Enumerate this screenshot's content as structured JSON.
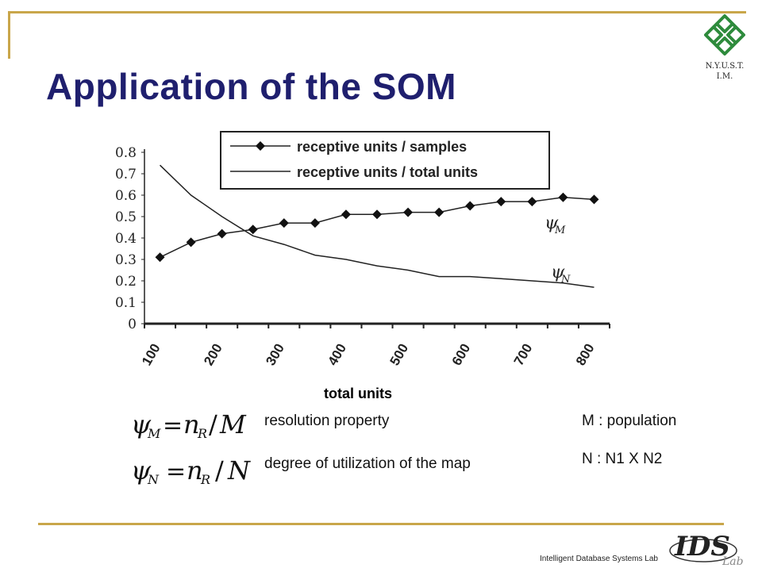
{
  "slide": {
    "title": "Application of the SOM",
    "logo_line1": "N.Y.U.S.T.",
    "logo_line2": "I.M.",
    "footer": "Intelligent Database Systems Lab",
    "footer_logo_text": "IDS",
    "footer_logo_sub": "Lab",
    "accent_color": "#1f1f6e",
    "frame_color": "#c9a64a",
    "logo_color": "#2e8b3c"
  },
  "definitions": [
    {
      "lhs": "ψ",
      "lhs_sub": "M",
      "rhs_var": "n",
      "rhs_sub": "R",
      "divisor": "M",
      "label": "resolution property"
    },
    {
      "lhs": "ψ",
      "lhs_sub": "N",
      "rhs_var": "n",
      "rhs_sub": "R",
      "divisor": "N",
      "label": "degree of utilization of the map"
    }
  ],
  "notes": [
    "M : population",
    "N : N1 X N2"
  ],
  "chart_data": {
    "type": "line",
    "xlabel": "total units",
    "ylabel": "",
    "xlim": [
      100,
      850
    ],
    "ylim": [
      0,
      0.8
    ],
    "x_ticks": [
      100,
      200,
      300,
      400,
      500,
      600,
      700,
      800
    ],
    "y_ticks": [
      0,
      0.1,
      0.2,
      0.3,
      0.4,
      0.5,
      0.6,
      0.7,
      0.8
    ],
    "y_tick_labels": [
      "0",
      "0.1",
      "0.2",
      "0.3",
      "0.4",
      "0.5",
      "0.6",
      "0.7",
      "0.8"
    ],
    "grid": false,
    "legend_position": "top-right",
    "series": [
      {
        "name": "receptive units / samples",
        "marker": "diamond",
        "annotation": "ψ",
        "annotation_sub": "M",
        "x": [
          125,
          175,
          225,
          275,
          325,
          375,
          425,
          475,
          525,
          575,
          625,
          675,
          725,
          775,
          825
        ],
        "values": [
          0.31,
          0.38,
          0.42,
          0.44,
          0.47,
          0.47,
          0.51,
          0.51,
          0.52,
          0.52,
          0.55,
          0.57,
          0.57,
          0.59,
          0.58
        ]
      },
      {
        "name": "receptive units / total units",
        "marker": "none",
        "annotation": "ψ",
        "annotation_sub": "N",
        "x": [
          125,
          175,
          225,
          275,
          325,
          375,
          425,
          475,
          525,
          575,
          625,
          675,
          725,
          775,
          825
        ],
        "values": [
          0.74,
          0.6,
          0.5,
          0.41,
          0.37,
          0.32,
          0.3,
          0.27,
          0.25,
          0.22,
          0.22,
          0.21,
          0.2,
          0.19,
          0.17
        ]
      }
    ]
  }
}
